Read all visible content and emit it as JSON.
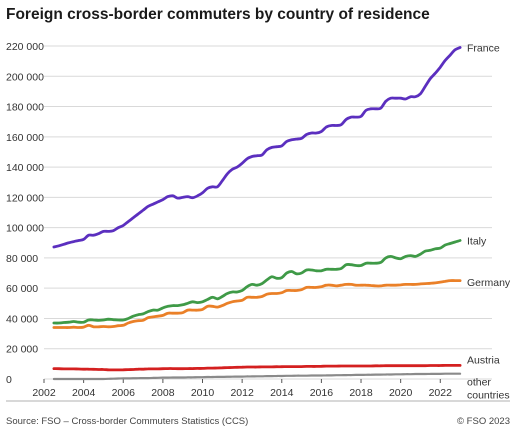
{
  "chart_data": {
    "type": "line",
    "title": "Foreign cross-border commuters by country of residence",
    "xlabel": "",
    "ylabel": "",
    "xlim": [
      2002,
      2023.5
    ],
    "ylim": [
      0,
      220000
    ],
    "x_ticks": [
      "2002",
      "2004",
      "2006",
      "2008",
      "2010",
      "2012",
      "2014",
      "2016",
      "2018",
      "2020",
      "2022"
    ],
    "y_ticks": [
      "0",
      "20 000",
      "40 000",
      "60 000",
      "80 000",
      "100 000",
      "120 000",
      "140 000",
      "160 000",
      "180 000",
      "200 000",
      "220 000"
    ],
    "grid": "horizontal",
    "legend": "direct labels at line ends",
    "x": [
      2002.5,
      2002.75,
      2003.0,
      2003.25,
      2003.5,
      2003.75,
      2004.0,
      2004.25,
      2004.5,
      2004.75,
      2005.0,
      2005.25,
      2005.5,
      2005.75,
      2006.0,
      2006.25,
      2006.5,
      2006.75,
      2007.0,
      2007.25,
      2007.5,
      2007.75,
      2008.0,
      2008.25,
      2008.5,
      2008.75,
      2009.0,
      2009.25,
      2009.5,
      2009.75,
      2010.0,
      2010.25,
      2010.5,
      2010.75,
      2011.0,
      2011.25,
      2011.5,
      2011.75,
      2012.0,
      2012.25,
      2012.5,
      2012.75,
      2013.0,
      2013.25,
      2013.5,
      2013.75,
      2014.0,
      2014.25,
      2014.5,
      2014.75,
      2015.0,
      2015.25,
      2015.5,
      2015.75,
      2016.0,
      2016.25,
      2016.5,
      2016.75,
      2017.0,
      2017.25,
      2017.5,
      2017.75,
      2018.0,
      2018.25,
      2018.5,
      2018.75,
      2019.0,
      2019.25,
      2019.5,
      2019.75,
      2020.0,
      2020.25,
      2020.5,
      2020.75,
      2021.0,
      2021.25,
      2021.5,
      2021.75,
      2022.0,
      2022.25,
      2022.5,
      2022.75,
      2023.0
    ],
    "series": [
      {
        "name": "France",
        "color": "#5b2fbf",
        "values": [
          87200,
          88000,
          89000,
          90000,
          90800,
          91500,
          92200,
          95000,
          95000,
          96000,
          97500,
          97500,
          98000,
          100000,
          101500,
          104000,
          106500,
          109000,
          111500,
          114000,
          115500,
          117000,
          118500,
          120500,
          121000,
          119500,
          120000,
          120500,
          119800,
          121000,
          123000,
          126000,
          127000,
          127000,
          131000,
          135500,
          138500,
          140000,
          142500,
          145500,
          147000,
          147500,
          148000,
          151500,
          153000,
          153500,
          154000,
          157000,
          158000,
          158500,
          159000,
          161500,
          162500,
          162500,
          163500,
          166500,
          167500,
          167500,
          168000,
          171500,
          173000,
          173000,
          173500,
          177500,
          178500,
          178500,
          179000,
          183500,
          185500,
          185500,
          185500,
          185000,
          186500,
          186500,
          188500,
          193500,
          198500,
          202000,
          206000,
          210500,
          214000,
          217500,
          219000
        ]
      },
      {
        "name": "Italy",
        "color": "#3f9a47",
        "values": [
          37000,
          37000,
          37300,
          37500,
          38000,
          37500,
          37500,
          39000,
          39000,
          38700,
          39000,
          39500,
          39200,
          39000,
          39000,
          40000,
          41500,
          42500,
          43000,
          44500,
          45500,
          45500,
          47000,
          48000,
          48500,
          48500,
          49000,
          50000,
          51000,
          50500,
          51000,
          52500,
          54000,
          53000,
          54500,
          56500,
          57500,
          57500,
          58500,
          61000,
          62500,
          62000,
          63000,
          65500,
          67500,
          66500,
          67000,
          70000,
          71000,
          69500,
          70000,
          72000,
          72000,
          71500,
          71500,
          72500,
          72500,
          72500,
          73000,
          75500,
          75500,
          75000,
          75000,
          76500,
          76500,
          76500,
          77000,
          80000,
          81000,
          80000,
          79500,
          81000,
          81500,
          81000,
          82500,
          84500,
          85000,
          86000,
          86500,
          88500,
          89500,
          90500,
          91500
        ]
      },
      {
        "name": "Germany",
        "color": "#ea8028",
        "values": [
          34000,
          34000,
          34000,
          34000,
          34200,
          34000,
          34300,
          35500,
          34500,
          34500,
          34700,
          34500,
          34700,
          35200,
          35500,
          37000,
          38000,
          38500,
          38800,
          40500,
          41000,
          41500,
          42000,
          43500,
          43500,
          43500,
          43800,
          45500,
          45500,
          45500,
          46000,
          48000,
          48000,
          47500,
          48500,
          50000,
          51000,
          51500,
          52000,
          54000,
          54000,
          54000,
          54500,
          56000,
          56500,
          56500,
          57000,
          58500,
          58500,
          58500,
          59000,
          60500,
          60500,
          60500,
          61000,
          62000,
          62000,
          61500,
          62000,
          62500,
          62500,
          62000,
          62000,
          62000,
          61800,
          61500,
          61500,
          62000,
          62000,
          62000,
          62200,
          62500,
          62500,
          62500,
          62800,
          63000,
          63200,
          63500,
          64000,
          64500,
          65000,
          65000,
          65000
        ]
      },
      {
        "name": "Austria",
        "color": "#d42020",
        "values": [
          6900,
          6800,
          6700,
          6700,
          6700,
          6600,
          6500,
          6500,
          6400,
          6300,
          6300,
          6100,
          6000,
          6000,
          6100,
          6200,
          6300,
          6500,
          6500,
          6700,
          6700,
          6700,
          6800,
          6900,
          6900,
          6800,
          6800,
          6900,
          6900,
          7000,
          7000,
          7200,
          7200,
          7300,
          7400,
          7500,
          7600,
          7700,
          7800,
          7900,
          7900,
          7900,
          8000,
          8000,
          8000,
          8100,
          8100,
          8200,
          8200,
          8200,
          8200,
          8300,
          8300,
          8300,
          8400,
          8500,
          8500,
          8500,
          8600,
          8600,
          8600,
          8600,
          8600,
          8600,
          8600,
          8700,
          8700,
          8800,
          8800,
          8800,
          8800,
          8800,
          8800,
          8800,
          8800,
          8800,
          8900,
          8900,
          8900,
          9000,
          9000,
          9000,
          9000
        ]
      },
      {
        "name": "other countries",
        "color": "#8a8a8a",
        "values": [
          0,
          0,
          0,
          0,
          0,
          0,
          0,
          0,
          0,
          0,
          0,
          100,
          200,
          300,
          400,
          400,
          500,
          500,
          600,
          600,
          700,
          800,
          900,
          900,
          1000,
          1000,
          1000,
          1100,
          1100,
          1200,
          1200,
          1300,
          1300,
          1400,
          1400,
          1500,
          1500,
          1600,
          1600,
          1700,
          1700,
          1800,
          1800,
          1900,
          1900,
          2000,
          2000,
          2100,
          2100,
          2200,
          2200,
          2200,
          2300,
          2300,
          2300,
          2400,
          2400,
          2500,
          2500,
          2600,
          2600,
          2700,
          2700,
          2800,
          2800,
          2900,
          2900,
          3000,
          3000,
          3100,
          3100,
          3200,
          3200,
          3300,
          3300,
          3300,
          3400,
          3400,
          3400,
          3500,
          3500,
          3500,
          3500
        ]
      }
    ],
    "series_labels": [
      {
        "lines": [
          "France"
        ],
        "value": 219000
      },
      {
        "lines": [
          "Italy"
        ],
        "value": 91500
      },
      {
        "lines": [
          "Germany"
        ],
        "value": 64000
      },
      {
        "lines": [
          "Austria"
        ],
        "value": 13000
      },
      {
        "lines": [
          "other",
          "countries"
        ],
        "value": -1500
      }
    ]
  },
  "footer": {
    "source": "Source: FSO – Cross-border Commuters Statistics (CCS)",
    "copyright": "© FSO 2023"
  }
}
